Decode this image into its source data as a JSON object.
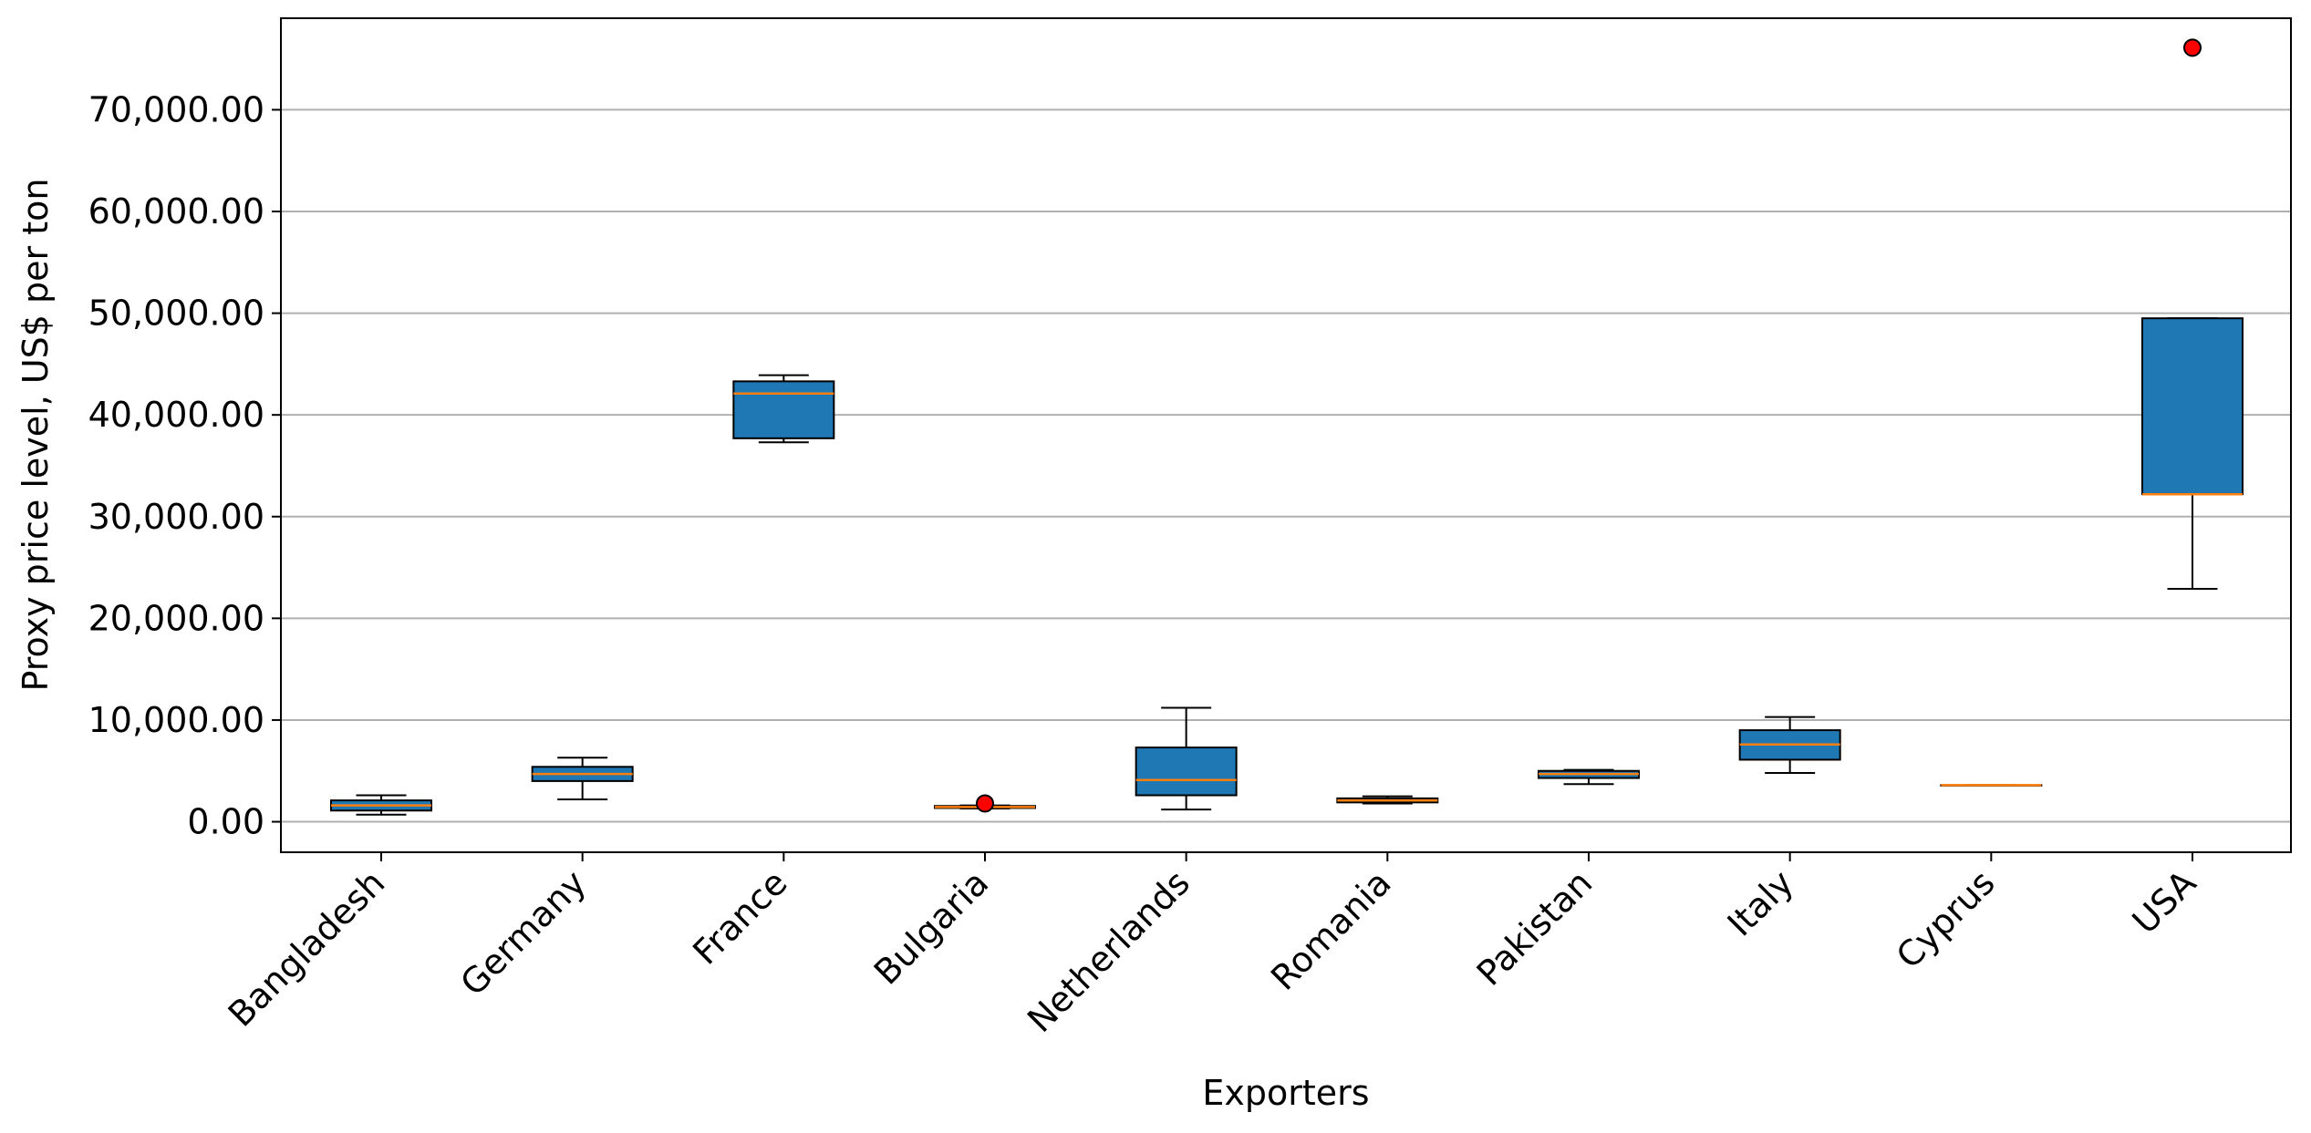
{
  "chart_data": {
    "type": "boxplot",
    "title": "",
    "xlabel": "Exporters",
    "ylabel": "Proxy price level, US$ per ton",
    "ylim": [
      -3000,
      79000
    ],
    "yticks": [
      0,
      10000,
      20000,
      30000,
      40000,
      50000,
      60000,
      70000
    ],
    "ytick_labels": [
      "0.00",
      "10,000.00",
      "20,000.00",
      "30,000.00",
      "40,000.00",
      "50,000.00",
      "60,000.00",
      "70,000.00"
    ],
    "grid": "horizontal",
    "box_color": "#1f77b4",
    "median_color": "#ff7f0e",
    "outlier_color": "#ff0000",
    "categories": [
      "Bangladesh",
      "Germany",
      "France",
      "Bulgaria",
      "Netherlands",
      "Romania",
      "Pakistan",
      "Italy",
      "Cyprus",
      "USA"
    ],
    "boxes": [
      {
        "category": "Bangladesh",
        "whislo": 700,
        "q1": 1100,
        "med": 1600,
        "q3": 2100,
        "whishi": 2600,
        "fliers": []
      },
      {
        "category": "Germany",
        "whislo": 2200,
        "q1": 4000,
        "med": 4700,
        "q3": 5400,
        "whishi": 6300,
        "fliers": []
      },
      {
        "category": "France",
        "whislo": 37300,
        "q1": 37700,
        "med": 42100,
        "q3": 43300,
        "whishi": 43900,
        "fliers": []
      },
      {
        "category": "Bulgaria",
        "whislo": 1300,
        "q1": 1350,
        "med": 1450,
        "q3": 1550,
        "whishi": 1600,
        "fliers": [
          1800
        ]
      },
      {
        "category": "Netherlands",
        "whislo": 1200,
        "q1": 2600,
        "med": 4100,
        "q3": 7300,
        "whishi": 11200,
        "fliers": []
      },
      {
        "category": "Romania",
        "whislo": 1800,
        "q1": 1900,
        "med": 2100,
        "q3": 2300,
        "whishi": 2500,
        "fliers": []
      },
      {
        "category": "Pakistan",
        "whislo": 3700,
        "q1": 4300,
        "med": 4700,
        "q3": 5000,
        "whishi": 5100,
        "fliers": []
      },
      {
        "category": "Italy",
        "whislo": 4800,
        "q1": 6100,
        "med": 7600,
        "q3": 9000,
        "whishi": 10300,
        "fliers": []
      },
      {
        "category": "Cyprus",
        "whislo": 3600,
        "q1": 3600,
        "med": 3600,
        "q3": 3600,
        "whishi": 3600,
        "fliers": []
      },
      {
        "category": "USA",
        "whislo": 22900,
        "q1": 32200,
        "med": 32200,
        "q3": 49500,
        "whishi": 49500,
        "fliers": [
          76100
        ]
      }
    ]
  }
}
